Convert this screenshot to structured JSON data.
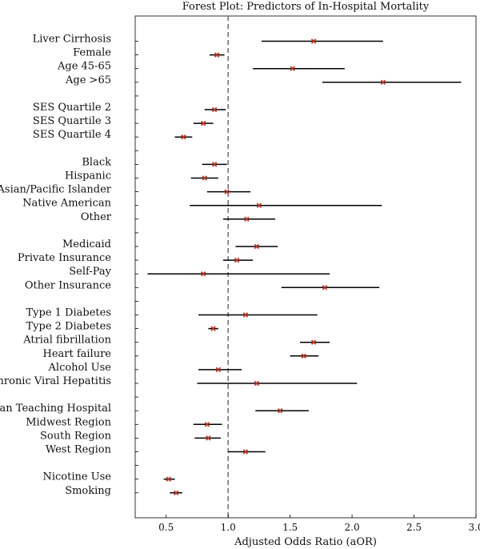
{
  "chart_data": {
    "type": "forest",
    "title": "Forest Plot: Predictors of In-Hospital Mortality",
    "xlabel": "Adjusted Odds Ratio (aOR)",
    "xlim": [
      0.25,
      3.0
    ],
    "xticks": [
      "0.5",
      "1.0",
      "1.5",
      "2.0",
      "2.5",
      "3.0"
    ],
    "reference_line": 1.0,
    "grid": false,
    "colors": {
      "marker": "#c0392b",
      "ci": "#000000",
      "reference": "#777777"
    },
    "groups": [
      {
        "items": [
          {
            "label": "Liver Cirrhosis",
            "or": 1.69,
            "lo": 1.27,
            "hi": 2.25
          },
          {
            "label": "Female",
            "or": 0.91,
            "lo": 0.85,
            "hi": 0.97
          },
          {
            "label": "Age 45-65",
            "or": 1.52,
            "lo": 1.2,
            "hi": 1.94
          },
          {
            "label": "Age >65",
            "or": 2.25,
            "lo": 1.76,
            "hi": 2.88
          }
        ]
      },
      {
        "items": [
          {
            "label": "SES Quartile 2",
            "or": 0.89,
            "lo": 0.81,
            "hi": 0.98
          },
          {
            "label": "SES Quartile 3",
            "or": 0.8,
            "lo": 0.72,
            "hi": 0.88
          },
          {
            "label": "SES Quartile 4",
            "or": 0.64,
            "lo": 0.57,
            "hi": 0.71
          }
        ]
      },
      {
        "items": [
          {
            "label": "Black",
            "or": 0.89,
            "lo": 0.79,
            "hi": 0.99
          },
          {
            "label": "Hispanic",
            "or": 0.81,
            "lo": 0.7,
            "hi": 0.92
          },
          {
            "label": "Asian/Pacific Islander",
            "or": 0.99,
            "lo": 0.83,
            "hi": 1.18
          },
          {
            "label": "Native American",
            "or": 1.25,
            "lo": 0.69,
            "hi": 2.24
          },
          {
            "label": "Other",
            "or": 1.15,
            "lo": 0.96,
            "hi": 1.38
          }
        ]
      },
      {
        "items": [
          {
            "label": "Medicaid",
            "or": 1.23,
            "lo": 1.06,
            "hi": 1.4
          },
          {
            "label": "Private Insurance",
            "or": 1.07,
            "lo": 0.96,
            "hi": 1.2
          },
          {
            "label": "Self-Pay",
            "or": 0.8,
            "lo": 0.35,
            "hi": 1.82
          },
          {
            "label": "Other Insurance",
            "or": 1.78,
            "lo": 1.43,
            "hi": 2.22
          }
        ]
      },
      {
        "items": [
          {
            "label": "Type 1 Diabetes",
            "or": 1.14,
            "lo": 0.76,
            "hi": 1.72
          },
          {
            "label": "Type 2 Diabetes",
            "or": 0.88,
            "lo": 0.84,
            "hi": 0.92
          },
          {
            "label": "Atrial fibrillation",
            "or": 1.69,
            "lo": 1.58,
            "hi": 1.82
          },
          {
            "label": "Heart failure",
            "or": 1.61,
            "lo": 1.5,
            "hi": 1.73
          },
          {
            "label": "Alcohol Use",
            "or": 0.92,
            "lo": 0.76,
            "hi": 1.11
          },
          {
            "label": "Chronic Viral Hepatitis",
            "or": 1.23,
            "lo": 0.75,
            "hi": 2.04
          }
        ]
      },
      {
        "items": [
          {
            "label": "Urban Teaching Hospital",
            "or": 1.42,
            "lo": 1.22,
            "hi": 1.65
          },
          {
            "label": "Midwest Region",
            "or": 0.83,
            "lo": 0.72,
            "hi": 0.95
          },
          {
            "label": "South Region",
            "or": 0.84,
            "lo": 0.73,
            "hi": 0.94
          },
          {
            "label": "West Region",
            "or": 1.14,
            "lo": 1.0,
            "hi": 1.3
          }
        ]
      },
      {
        "items": [
          {
            "label": "Nicotine Use",
            "or": 0.52,
            "lo": 0.48,
            "hi": 0.57
          },
          {
            "label": "Smoking",
            "or": 0.58,
            "lo": 0.53,
            "hi": 0.63
          }
        ]
      }
    ]
  }
}
